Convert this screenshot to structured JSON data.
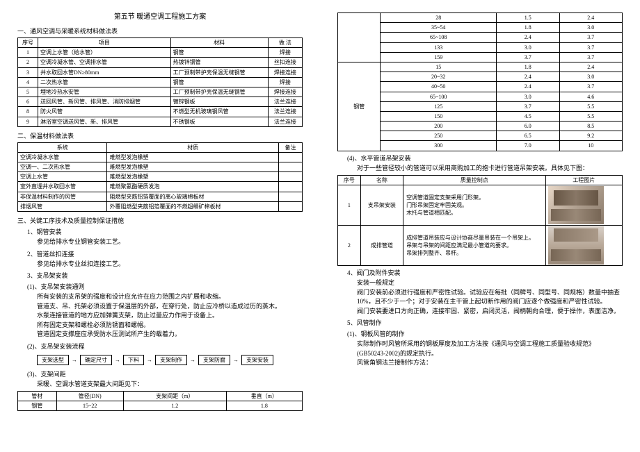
{
  "title": "第五节  暖通空调工程施工方案",
  "s1": {
    "h": "一、通风空调与采暖系统材料做法表",
    "header": [
      "序号",
      "项目",
      "材料",
      "做 法"
    ],
    "rows": [
      [
        "1",
        "空调上水管（给水管）",
        "钢管",
        "焊接"
      ],
      [
        "2",
        "空调冷凝水管、空调排水管",
        "热镀锌钢管",
        "丝扣连接"
      ],
      [
        "3",
        "井水取回水管DN≥80mm",
        "工厂预制带护壳保温无缝钢管",
        "焊接连接"
      ],
      [
        "4",
        "二次热水管",
        "钢管",
        "焊接"
      ],
      [
        "5",
        "埋地冷热水安管",
        "工厂预制带护壳保温无缝钢管",
        "焊接连接"
      ],
      [
        "6",
        "送回风管、新风管、排风管、消防排烟管",
        "镀锌钢板",
        "法兰连接"
      ],
      [
        "8",
        "防火风管",
        "不燃型无机玻璃钢风管",
        "法兰连接"
      ],
      [
        "9",
        "淋浴室空调送风管、新、排风管",
        "不锈钢板",
        "法兰连接"
      ]
    ]
  },
  "s2": {
    "h": "二、保温材料做法表",
    "header": [
      "系统",
      "材质",
      "备注"
    ],
    "rows": [
      [
        "空调冷凝水水管",
        "难燃型发泡橡塑",
        ""
      ],
      [
        "空调一、二次热水管",
        "难燃型发泡橡塑",
        ""
      ],
      [
        "空调上水管",
        "难燃型发泡橡塑",
        ""
      ],
      [
        "室外直埋井水取回水管",
        "难燃聚氨酯硬质发泡",
        ""
      ],
      [
        "非保温材料制作的风管",
        "阻燃型夹筋铝箔覆面的离心玻璃棉板材",
        ""
      ],
      [
        "排烟风管",
        "外覆阻燃型夹筋铝箔覆面的不燃超细矿棉板材",
        ""
      ]
    ]
  },
  "s3": {
    "h": "三、关键工序技术及质量控制保证措施",
    "p1": "1、钢管安装",
    "p1a": "参见给排水专业钢管安装工艺。",
    "p2": "2、管道丝扣连接",
    "p2a": "参见给排水专业丝扣连接工艺。",
    "p3": "3、支吊架安装",
    "p31": "(1)、支吊架安装通则",
    "p31a": "所有安装的支吊架的强度和设计应允许在应力范围之内扩展和收缩。",
    "p31b": "管道支、吊、托架必须设置于保温层的外部，在穿行处，防止应冷桥以造成过历的蒸木。",
    "p31c": "水泵连接管道的地方应加弹簧支架，防止过量应力作用于设备上。",
    "p31d": "所有固定支架和螺栓必须防锈面和螺帽。",
    "p31e": "管道固定支撑座应承受防水压测试所产生的载着力。",
    "p32": "(2)、支吊架安装流程",
    "flow": [
      "支架选型",
      "确定尺寸",
      "下料",
      "支架制作",
      "支架防腐",
      "支架安装"
    ],
    "p33": "(3)、支架间距",
    "p33a": "采暖、空调水管道支架最大间距见下：",
    "tbl": {
      "header": [
        "管材",
        "管径(DN)",
        "支架间距（m）",
        "垂直（m）"
      ],
      "row": [
        "钢管",
        "15~22",
        "1.2",
        "1.8"
      ]
    }
  },
  "right_tbl": {
    "material": "钢管",
    "rows": [
      [
        "28",
        "1.5",
        "2.4"
      ],
      [
        "35~54",
        "1.8",
        "3.0"
      ],
      [
        "65~108",
        "2.4",
        "3.7"
      ],
      [
        "133",
        "3.0",
        "3.7"
      ],
      [
        "159",
        "3.7",
        "3.7"
      ],
      [
        "15",
        "1.8",
        "2.4"
      ],
      [
        "20~32",
        "2.4",
        "3.0"
      ],
      [
        "40~50",
        "2.4",
        "3.7"
      ],
      [
        "65~100",
        "3.0",
        "4.6"
      ],
      [
        "125",
        "3.7",
        "5.5"
      ],
      [
        "150",
        "4.5",
        "5.5"
      ],
      [
        "200",
        "6.0",
        "8.5"
      ],
      [
        "250",
        "6.5",
        "9.2"
      ],
      [
        "300",
        "7.0",
        "10"
      ]
    ]
  },
  "s4": {
    "h": "(4)、水平管道吊架安装",
    "t": "对于一些管径较小的管道可以采用商购加工的抱卡进行管道吊架安装。具体见下图：",
    "header": [
      "序号",
      "名称",
      "质量控制点",
      "工程图片"
    ],
    "rows": [
      [
        "1",
        "支吊架安装",
        "空调管道固定支架采用门形架。\n门形吊架固定牢固美观。\n木托与管道相匹配。"
      ],
      [
        "2",
        "成排管道",
        "成排管道吊装应与设计协商尽量吊装在一个吊架上。\n吊架与吊架的间距应满足最小管道的要求。\n吊架排列整齐、吊杆。"
      ]
    ]
  },
  "s5": {
    "h": "4、阀门及附件安装",
    "t1": "安装一般规定",
    "t2": "阀门安装前必须进行强度和严密性试验。试验应在每批（同牌号、同型号、同规格）数量中抽查 10%，且不少于一个；对于安装在主干管上起切断作用的阀门应逐个做强度和严密性试验。",
    "t3": "阀门安装要进口方向正确，连接牢固、紧密，启闭灵活，阀柄朝向合理，便于操作，表面洁净。"
  },
  "s6": {
    "h": "5、风管制作",
    "p1": "(1)、钢板风管的制作",
    "t": "实际制作时风管所采用的钢板厚度及加工方法按《通风与空调工程施工质量验收规范》(GB50243-2002)的规定执行。",
    "t2": "风管角钢法兰接制作方法："
  }
}
